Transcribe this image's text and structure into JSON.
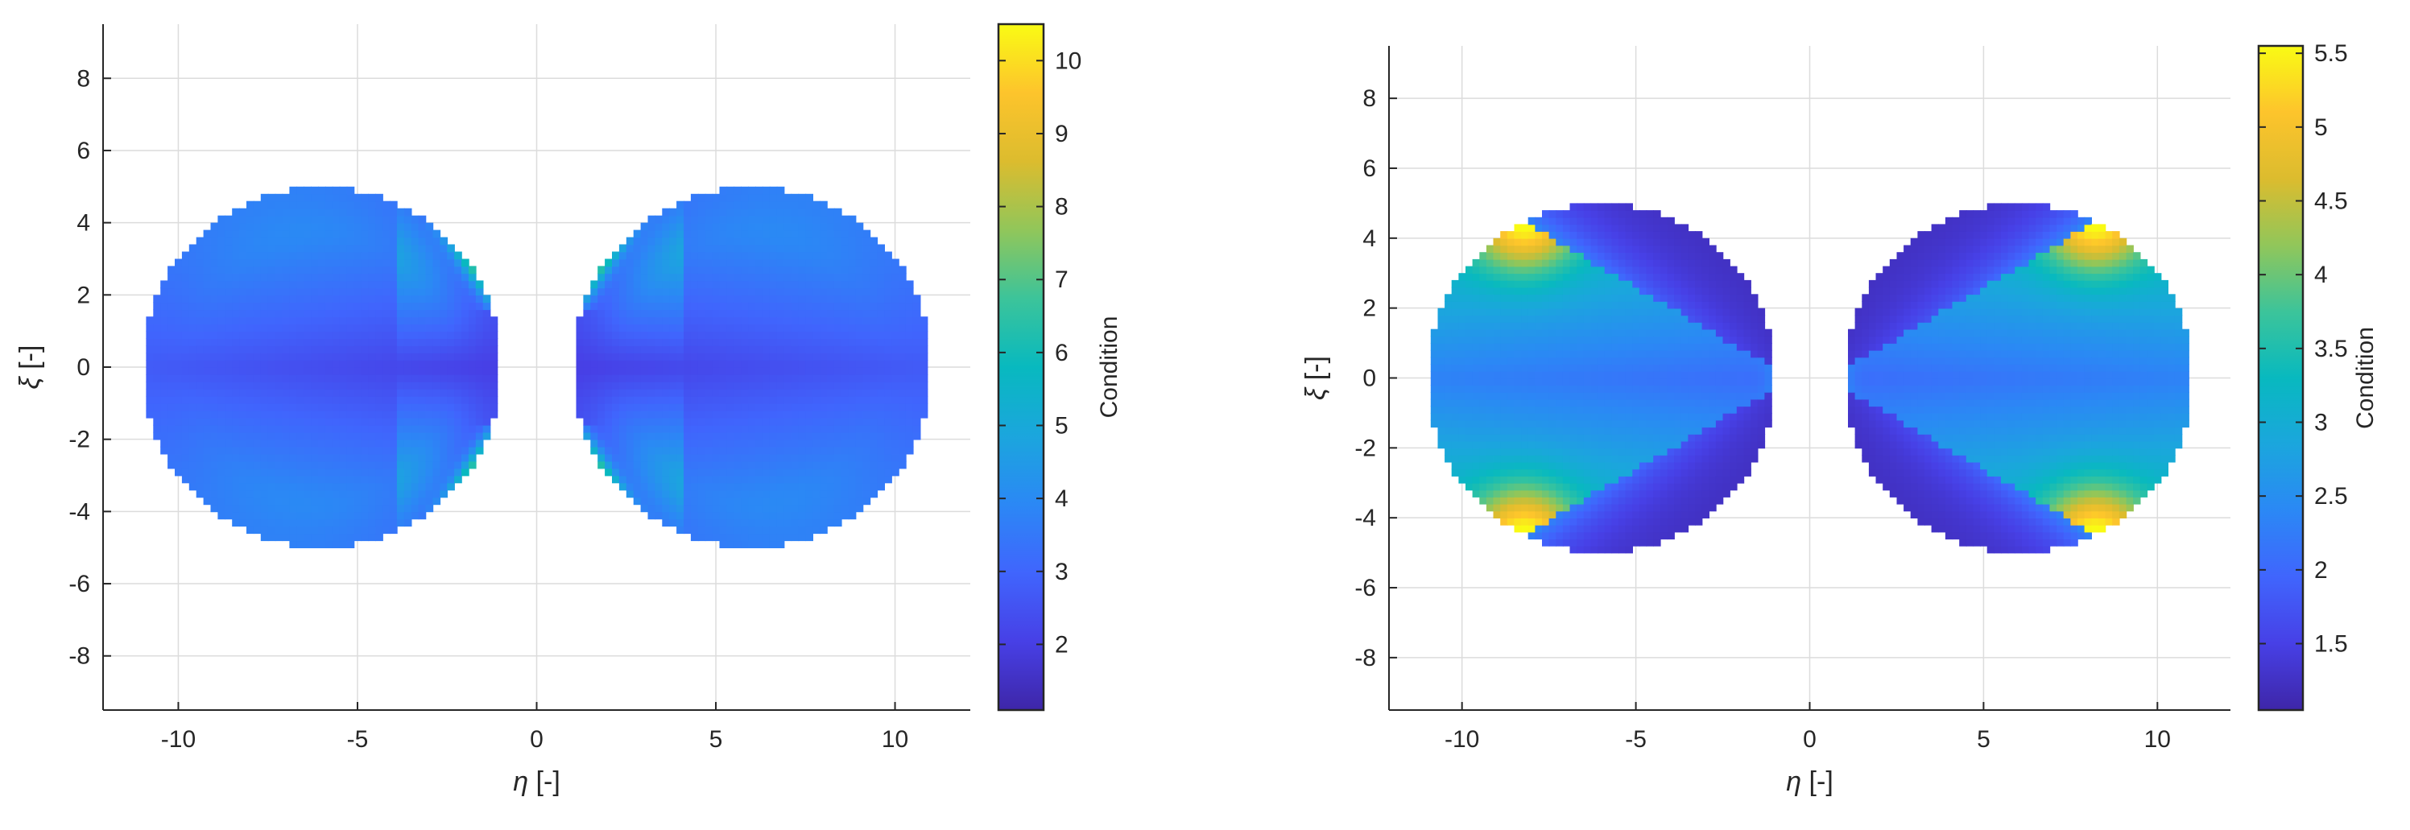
{
  "chart_data": [
    {
      "type": "heatmap",
      "xlabel_sym": "η",
      "xlabel_unit": "[-]",
      "ylabel_sym": "ξ",
      "ylabel_unit": "[-]",
      "xlim": [
        -12.1,
        12.1
      ],
      "ylim": [
        -9.5,
        9.5
      ],
      "xticks": [
        -10,
        -5,
        0,
        5,
        10
      ],
      "yticks": [
        -8,
        -6,
        -4,
        -2,
        0,
        2,
        4,
        6,
        8
      ],
      "grid": true,
      "colormap": "parula",
      "colorbar": {
        "label": "Condition",
        "range": [
          1.1,
          10.5
        ],
        "ticks": [
          2,
          3,
          4,
          5,
          6,
          7,
          8,
          9,
          10
        ],
        "tick_labels": [
          "2",
          "3",
          "4",
          "5",
          "6",
          "7",
          "8",
          "9",
          "10"
        ]
      },
      "region": {
        "lobe_center_x": 6.0,
        "lobe_radius": 5.0,
        "waist_half_height": 1.7
      }
    },
    {
      "type": "heatmap",
      "xlabel_sym": "η",
      "xlabel_unit": "[-]",
      "ylabel_sym": "ξ",
      "ylabel_unit": "[-]",
      "xlim": [
        -12.1,
        12.1
      ],
      "ylim": [
        -9.5,
        9.5
      ],
      "xticks": [
        -10,
        -5,
        0,
        5,
        10
      ],
      "yticks": [
        -8,
        -6,
        -4,
        -2,
        0,
        2,
        4,
        6,
        8
      ],
      "grid": true,
      "colormap": "parula",
      "colorbar": {
        "label": "Condition",
        "range": [
          1.05,
          5.55
        ],
        "ticks": [
          1.5,
          2,
          2.5,
          3,
          3.5,
          4,
          4.5,
          5,
          5.5
        ],
        "tick_labels": [
          "1.5",
          "2",
          "2.5",
          "3",
          "3.5",
          "4",
          "4.5",
          "5",
          "5.5"
        ]
      },
      "region": {
        "lobe_center_x": 6.0,
        "lobe_radius": 5.0,
        "waist_half_height": 1.7
      }
    }
  ]
}
